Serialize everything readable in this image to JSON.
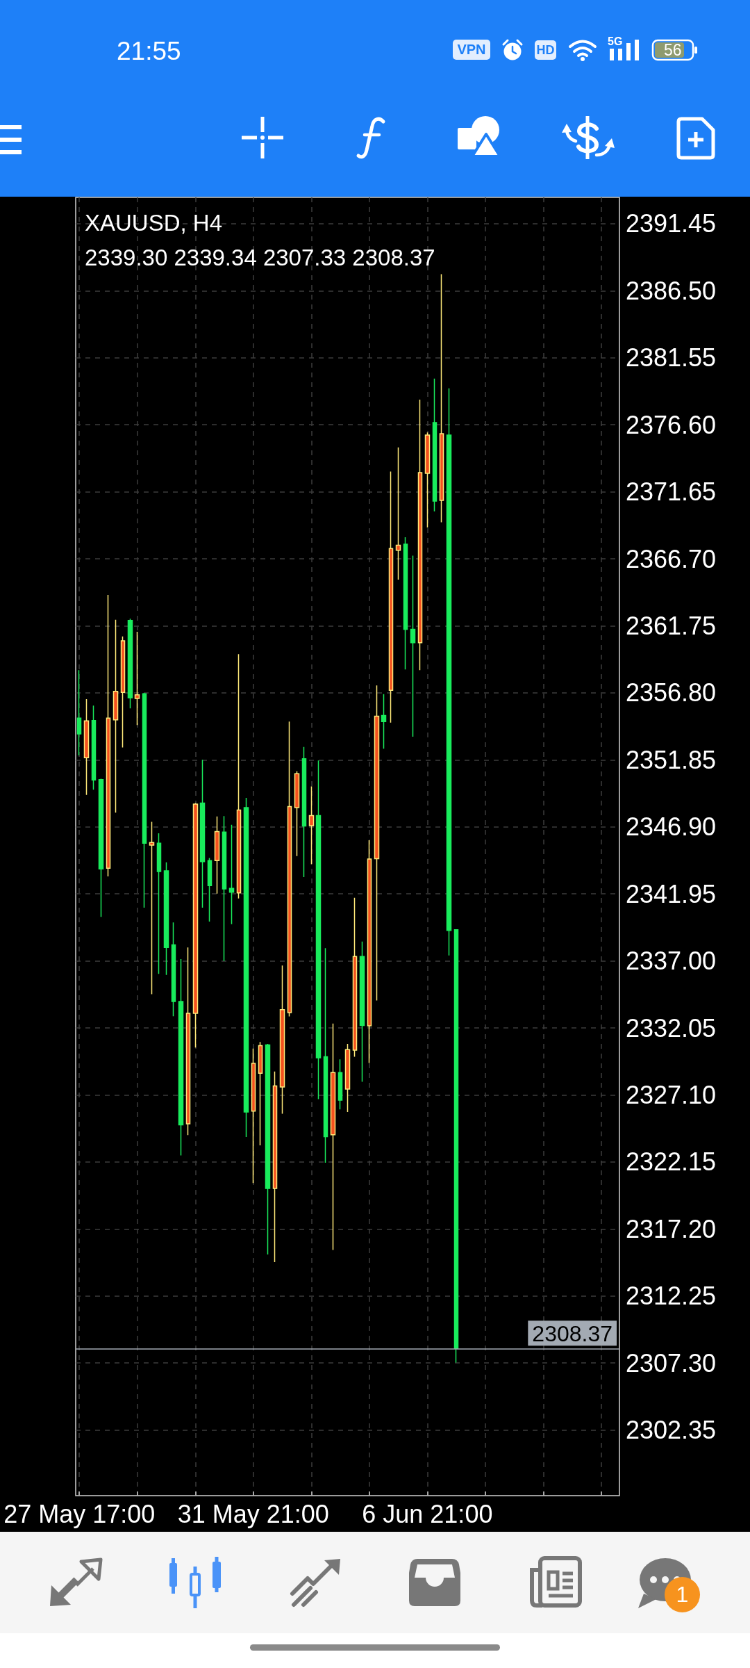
{
  "chart_data": {
    "type": "candlestick",
    "title": "XAUUSD, H4",
    "subtitle": "2339.30 2339.34 2307.33 2308.37",
    "categories": [
      "27 May 17:00",
      null,
      null,
      null,
      null,
      null,
      null,
      null,
      null,
      null,
      null,
      null,
      null,
      null,
      null,
      null,
      null,
      null,
      null,
      null,
      null,
      null,
      null,
      null,
      "31 May 21:00",
      null,
      null,
      null,
      null,
      null,
      null,
      null,
      null,
      null,
      null,
      null,
      null,
      null,
      null,
      null,
      null,
      null,
      null,
      null,
      null,
      null,
      null,
      null,
      "6 Jun 21:00",
      null,
      null,
      null,
      null,
      null,
      null,
      null,
      null,
      null,
      null,
      null,
      null,
      null,
      null,
      null,
      null,
      null,
      null,
      null,
      null,
      null,
      null,
      null,
      null,
      null,
      null
    ],
    "ohlc": [
      [
        2354.94,
        2358.48,
        2352.19,
        2353.77
      ],
      [
        2352.01,
        2356.33,
        2349.26,
        2354.73
      ],
      [
        2354.76,
        2355.86,
        2349.65,
        2350.36
      ],
      [
        2350.39,
        2350.45,
        2340.25,
        2343.79
      ],
      [
        2343.84,
        2364.03,
        2343.24,
        2354.94
      ],
      [
        2354.81,
        2362.2,
        2347.95,
        2356.91
      ],
      [
        2356.83,
        2360.97,
        2352.77,
        2360.65
      ],
      [
        2362.15,
        2362.28,
        2355.65,
        2356.44
      ],
      [
        2356.38,
        2361.31,
        2354.42,
        2356.65
      ],
      [
        2356.73,
        2356.8,
        2340.93,
        2345.69
      ],
      [
        2345.55,
        2347.27,
        2334.54,
        2345.75
      ],
      [
        2345.69,
        2346.42,
        2336.04,
        2343.6
      ],
      [
        2343.65,
        2344.28,
        2335.96,
        2337.99
      ],
      [
        2338.19,
        2339.84,
        2332.91,
        2334.0
      ],
      [
        2334.0,
        2337.13,
        2322.63,
        2324.89
      ],
      [
        2324.97,
        2337.99,
        2324.13,
        2333.13
      ],
      [
        2333.13,
        2348.66,
        2330.6,
        2348.58
      ],
      [
        2348.66,
        2351.85,
        2340.93,
        2344.33
      ],
      [
        2344.41,
        2344.6,
        2339.9,
        2342.56
      ],
      [
        2344.41,
        2347.67,
        2341.97,
        2346.56
      ],
      [
        2346.51,
        2347.7,
        2336.99,
        2342.32
      ],
      [
        2342.36,
        2347.05,
        2339.71,
        2342.07
      ],
      [
        2342.02,
        2359.66,
        2341.61,
        2348.14
      ],
      [
        2348.32,
        2349.05,
        2323.99,
        2325.84
      ],
      [
        2325.9,
        2330.52,
        2320.59,
        2329.43
      ],
      [
        2328.7,
        2331.01,
        2323.37,
        2330.74
      ],
      [
        2330.79,
        2330.87,
        2315.32,
        2320.19
      ],
      [
        2320.19,
        2328.83,
        2314.75,
        2327.76
      ],
      [
        2327.69,
        2336.66,
        2325.71,
        2333.4
      ],
      [
        2333.18,
        2354.68,
        2332.9,
        2348.4
      ],
      [
        2348.33,
        2351.01,
        2344.74,
        2350.83
      ],
      [
        2351.93,
        2352.8,
        2343.19,
        2346.97
      ],
      [
        2346.99,
        2349.89,
        2344.14,
        2347.73
      ],
      [
        2347.73,
        2351.8,
        2326.79,
        2329.84
      ],
      [
        2329.92,
        2337.94,
        2322.09,
        2324.02
      ],
      [
        2324.16,
        2332.37,
        2315.65,
        2328.75
      ],
      [
        2328.75,
        2329.73,
        2326.03,
        2326.71
      ],
      [
        2327.53,
        2330.87,
        2325.84,
        2330.44
      ],
      [
        2330.41,
        2341.67,
        2329.92,
        2337.32
      ],
      [
        2337.32,
        2338.43,
        2328.07,
        2332.23
      ],
      [
        2332.2,
        2345.91,
        2329.46,
        2344.52
      ],
      [
        2344.55,
        2357.35,
        2334.08,
        2355.08
      ],
      [
        2355.13,
        2356.7,
        2352.67,
        2354.68
      ],
      [
        2356.99,
        2373.15,
        2354.6,
        2367.46
      ],
      [
        2367.33,
        2374.93,
        2365.16,
        2367.7
      ],
      [
        2367.78,
        2368.3,
        2358.53,
        2361.49
      ],
      [
        2361.49,
        2366.94,
        2353.56,
        2360.5
      ],
      [
        2360.5,
        2378.46,
        2358.48,
        2373.07
      ],
      [
        2373.02,
        2376.03,
        2369.01,
        2375.84
      ],
      [
        2376.76,
        2380.01,
        2370.21,
        2370.97
      ],
      [
        2371.02,
        2387.73,
        2369.4,
        2375.95
      ],
      [
        2375.84,
        2379.3,
        2337.4,
        2339.25
      ],
      [
        2339.3,
        2339.34,
        2307.33,
        2308.37
      ],
      null,
      null,
      null,
      null,
      null,
      null,
      null,
      null,
      null,
      null,
      null,
      null,
      null,
      null,
      null,
      null,
      null,
      null,
      null,
      null,
      null,
      null
    ],
    "colors": [
      "#19ec5c",
      "#f4511e",
      "#19ec5c",
      "#19ec5c",
      "#f4511e",
      "#f4511e",
      "#f4511e",
      "#19ec5c",
      "#f4511e",
      "#19ec5c",
      "#f4511e",
      "#19ec5c",
      "#19ec5c",
      "#19ec5c",
      "#19ec5c",
      "#f4511e",
      "#f4511e",
      "#19ec5c",
      "#19ec5c",
      "#f4511e",
      "#19ec5c",
      "#19ec5c",
      "#f4511e",
      "#19ec5c",
      "#f4511e",
      "#f4511e",
      "#19ec5c",
      "#f4511e",
      "#f4511e",
      "#f4511e",
      "#f4511e",
      "#19ec5c",
      "#f4511e",
      "#19ec5c",
      "#19ec5c",
      "#f4511e",
      "#19ec5c",
      "#f4511e",
      "#f4511e",
      "#19ec5c",
      "#f4511e",
      "#f4511e",
      "#19ec5c",
      "#f4511e",
      "#f4511e",
      "#19ec5c",
      "#19ec5c",
      "#f4511e",
      "#f4511e",
      "#19ec5c",
      "#f4511e",
      "#19ec5c",
      "#19ec5c",
      null,
      null,
      null,
      null,
      null,
      null,
      null,
      null,
      null,
      null,
      null,
      null,
      null,
      null,
      null,
      null,
      null,
      null,
      null,
      null,
      null,
      null
    ],
    "ylim": [
      2297.5,
      2393.4
    ],
    "yticks": [
      2302.35,
      {
        "value": 2307.3,
        "label": "2307.30"
      },
      2312.25,
      {
        "value": 2317.2,
        "label": "2317.20"
      },
      2322.15,
      {
        "value": 2327.1,
        "label": "2327.10"
      },
      2332.05,
      {
        "value": 2337,
        "label": "2337.00"
      },
      2341.95,
      {
        "value": 2346.9,
        "label": "2346.90"
      },
      2351.85,
      {
        "value": 2356.8,
        "label": "2356.80"
      },
      2361.75,
      {
        "value": 2366.7,
        "label": "2366.70"
      },
      2371.65,
      {
        "value": 2376.6,
        "label": "2376.60"
      },
      2381.55,
      {
        "value": 2386.5,
        "label": "2386.50"
      },
      2391.45
    ],
    "grid": true,
    "ref_lines": [
      {
        "axis": "y",
        "value": 2308.37,
        "label": "2308.37",
        "color": "#a3aab3"
      }
    ],
    "annotations": [
      "21:55",
      "VPN",
      "HD",
      "5G",
      "56",
      "1"
    ]
  }
}
